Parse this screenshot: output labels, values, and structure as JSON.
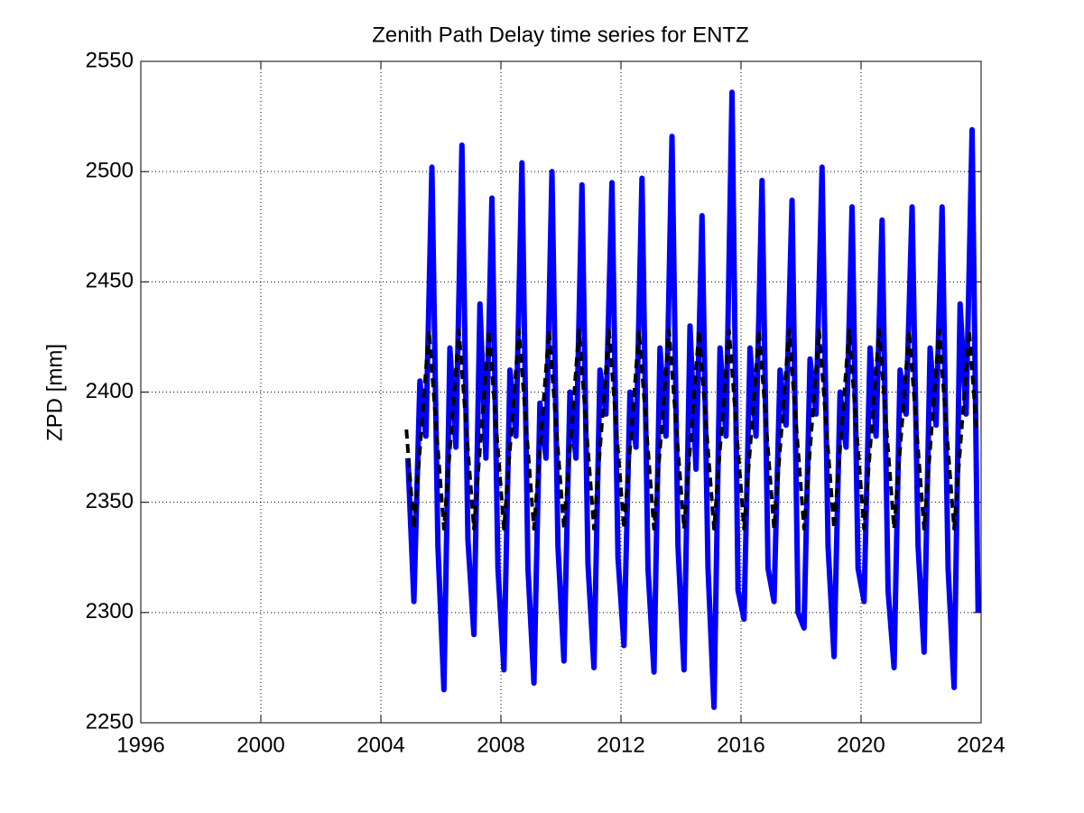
{
  "chart_data": {
    "type": "line",
    "title": "Zenith Path Delay time series for ENTZ",
    "y_label": "ZPD [mm]",
    "xlim": [
      1996,
      2024
    ],
    "xticks": [
      1996,
      2000,
      2004,
      2008,
      2012,
      2016,
      2020,
      2024
    ],
    "ylim": [
      2250,
      2550
    ],
    "yticks": [
      2250,
      2300,
      2350,
      2400,
      2450,
      2500,
      2550
    ],
    "grid": true,
    "series": [
      {
        "color": "#0000ff",
        "linestyle": "solid",
        "x": [
          2004.9,
          2005.1,
          2005.3,
          2005.5,
          2005.7,
          2005.9,
          2006.1,
          2006.3,
          2006.5,
          2006.7,
          2006.9,
          2007.1,
          2007.3,
          2007.5,
          2007.7,
          2007.9,
          2008.1,
          2008.3,
          2008.5,
          2008.7,
          2008.9,
          2009.1,
          2009.3,
          2009.5,
          2009.7,
          2009.9,
          2010.1,
          2010.3,
          2010.5,
          2010.7,
          2010.9,
          2011.1,
          2011.3,
          2011.5,
          2011.7,
          2011.9,
          2012.1,
          2012.3,
          2012.5,
          2012.7,
          2012.9,
          2013.1,
          2013.3,
          2013.5,
          2013.7,
          2013.9,
          2014.1,
          2014.3,
          2014.5,
          2014.7,
          2014.9,
          2015.1,
          2015.3,
          2015.5,
          2015.7,
          2015.9,
          2016.1,
          2016.3,
          2016.5,
          2016.7,
          2016.9,
          2017.1,
          2017.3,
          2017.5,
          2017.7,
          2017.9,
          2018.1,
          2018.3,
          2018.5,
          2018.7,
          2018.9,
          2019.1,
          2019.3,
          2019.5,
          2019.7,
          2019.9,
          2020.1,
          2020.3,
          2020.5,
          2020.7,
          2020.9,
          2021.1,
          2021.3,
          2021.5,
          2021.7,
          2021.9,
          2022.1,
          2022.3,
          2022.5,
          2022.7,
          2022.9,
          2023.1,
          2023.3,
          2023.5,
          2023.7,
          2023.9
        ],
        "values": [
          2370,
          2305,
          2405,
          2380,
          2502,
          2330,
          2265,
          2420,
          2375,
          2512,
          2333,
          2290,
          2440,
          2370,
          2488,
          2320,
          2274,
          2410,
          2380,
          2504,
          2320,
          2268,
          2395,
          2370,
          2500,
          2330,
          2278,
          2400,
          2370,
          2494,
          2322,
          2275,
          2410,
          2390,
          2495,
          2325,
          2285,
          2400,
          2375,
          2497,
          2320,
          2273,
          2420,
          2380,
          2516,
          2330,
          2274,
          2430,
          2365,
          2480,
          2320,
          2257,
          2420,
          2380,
          2536,
          2310,
          2297,
          2420,
          2380,
          2496,
          2320,
          2305,
          2410,
          2385,
          2487,
          2300,
          2293,
          2415,
          2390,
          2502,
          2330,
          2280,
          2400,
          2375,
          2484,
          2320,
          2305,
          2420,
          2380,
          2478,
          2310,
          2275,
          2410,
          2390,
          2484,
          2330,
          2282,
          2420,
          2385,
          2484,
          2320,
          2266,
          2440,
          2390,
          2519,
          2300
        ]
      },
      {
        "color": "#000000",
        "linestyle": "dashed",
        "x": [
          2004.85,
          2005.1,
          2005.35,
          2005.6,
          2005.85,
          2006.1,
          2006.35,
          2006.6,
          2006.85,
          2007.1,
          2007.35,
          2007.6,
          2007.85,
          2008.1,
          2008.35,
          2008.6,
          2008.85,
          2009.1,
          2009.35,
          2009.6,
          2009.85,
          2010.1,
          2010.35,
          2010.6,
          2010.85,
          2011.1,
          2011.35,
          2011.6,
          2011.85,
          2012.1,
          2012.35,
          2012.6,
          2012.85,
          2013.1,
          2013.35,
          2013.6,
          2013.85,
          2014.1,
          2014.35,
          2014.6,
          2014.85,
          2015.1,
          2015.35,
          2015.6,
          2015.85,
          2016.1,
          2016.35,
          2016.6,
          2016.85,
          2017.1,
          2017.35,
          2017.6,
          2017.85,
          2018.1,
          2018.35,
          2018.6,
          2018.85,
          2019.1,
          2019.35,
          2019.6,
          2019.85,
          2020.1,
          2020.35,
          2020.6,
          2020.85,
          2021.1,
          2021.35,
          2021.6,
          2021.85,
          2022.1,
          2022.35,
          2022.6,
          2022.85,
          2023.1,
          2023.35,
          2023.6,
          2023.85
        ],
        "values": [
          2383,
          2338,
          2383,
          2428,
          2383,
          2338,
          2383,
          2428,
          2383,
          2338,
          2383,
          2428,
          2383,
          2338,
          2383,
          2428,
          2383,
          2338,
          2383,
          2428,
          2383,
          2338,
          2383,
          2428,
          2383,
          2338,
          2383,
          2428,
          2383,
          2338,
          2383,
          2428,
          2383,
          2338,
          2383,
          2428,
          2383,
          2338,
          2383,
          2428,
          2383,
          2338,
          2383,
          2428,
          2383,
          2338,
          2383,
          2428,
          2383,
          2338,
          2383,
          2428,
          2383,
          2338,
          2383,
          2428,
          2383,
          2338,
          2383,
          2428,
          2383,
          2338,
          2383,
          2428,
          2383,
          2338,
          2383,
          2428,
          2383,
          2338,
          2383,
          2428,
          2383,
          2338,
          2383,
          2428,
          2383
        ]
      }
    ]
  }
}
